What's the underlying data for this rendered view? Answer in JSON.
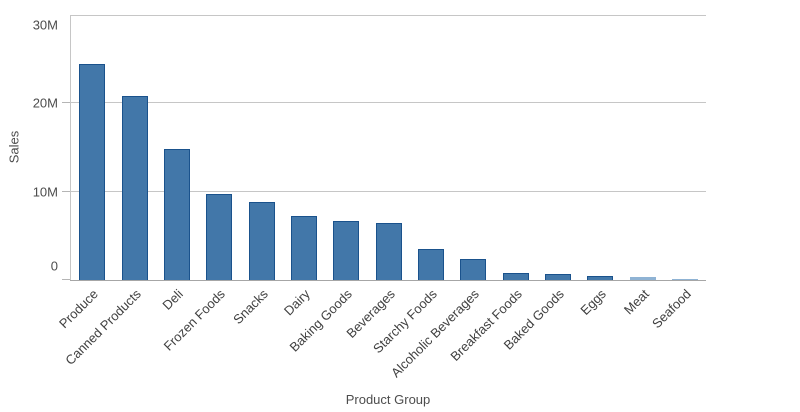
{
  "chart_data": {
    "type": "bar",
    "title": "",
    "xlabel": "Product Group",
    "ylabel": "Sales",
    "categories": [
      "Produce",
      "Canned Products",
      "Deli",
      "Frozen Foods",
      "Snacks",
      "Dairy",
      "Baking Goods",
      "Beverages",
      "Starchy Foods",
      "Alcoholic Beverages",
      "Breakfast Foods",
      "Baked Goods",
      "Eggs",
      "Meat",
      "Seafood"
    ],
    "values": [
      24400000,
      20800000,
      14800000,
      9700000,
      8800000,
      7200000,
      6700000,
      6400000,
      3500000,
      2400000,
      800000,
      700000,
      500000,
      300000,
      150000
    ],
    "ylim": [
      0,
      30000000
    ],
    "yticks": [
      {
        "value": 0,
        "label": "0"
      },
      {
        "value": 10000000,
        "label": "10M"
      },
      {
        "value": 20000000,
        "label": "20M"
      },
      {
        "value": 30000000,
        "label": "30M"
      }
    ],
    "grid": true,
    "legend": false,
    "sort_order": "descending",
    "colors": {
      "bar_fill": "#4277a9",
      "bar_border": "#1a528c",
      "gridline": "#c6c6c6",
      "axis_line": "#a6a6a6",
      "tick_label_text": "#4d4d4d",
      "category_label_text": "#404040"
    }
  }
}
